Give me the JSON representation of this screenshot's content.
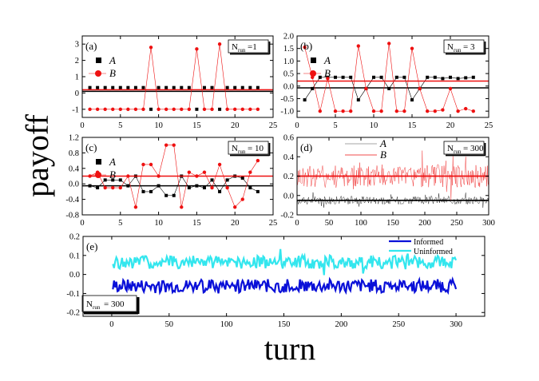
{
  "figure": {
    "ylabel": "payoff",
    "xlabel": "turn"
  },
  "colors": {
    "A": "#000000",
    "B": "#ee1111",
    "informed": "#0a10d8",
    "uninformed": "#33e6ee"
  },
  "chart_data": [
    {
      "panel": "(a)",
      "type": "scatter",
      "nrun_label": "N",
      "nrun_sub": "run",
      "nrun_value": "=1",
      "xlim": [
        0,
        25
      ],
      "ylim": [
        -1.5,
        3.5
      ],
      "xticks": [
        0,
        5,
        10,
        15,
        20,
        25
      ],
      "yticks": [
        -1,
        0,
        1,
        2,
        3
      ],
      "legend": [
        "A",
        "B"
      ],
      "series": [
        {
          "name": "A",
          "mean": 0.1,
          "connected": false,
          "x": [
            1,
            2,
            3,
            4,
            5,
            6,
            7,
            8,
            9,
            10,
            11,
            12,
            13,
            14,
            15,
            16,
            17,
            18,
            19,
            20,
            21,
            22,
            23
          ],
          "y": [
            0.33,
            0.33,
            0.33,
            0.33,
            0.33,
            0.33,
            0.33,
            0.33,
            -1,
            0.33,
            0.33,
            0.33,
            0.33,
            0.33,
            -1,
            0.33,
            0.33,
            -1,
            0.33,
            0.33,
            0.33,
            0.33,
            0.33
          ]
        },
        {
          "name": "B",
          "mean": 0.2,
          "connected": true,
          "x": [
            1,
            2,
            3,
            4,
            5,
            6,
            7,
            8,
            9,
            10,
            11,
            12,
            13,
            14,
            15,
            16,
            17,
            18,
            19,
            20,
            21,
            22,
            23
          ],
          "y": [
            -1,
            -1,
            -1,
            -1,
            -1,
            -1,
            -1,
            -1,
            2.8,
            -1,
            -1,
            -1,
            -1,
            -1,
            2.7,
            -1,
            -1,
            3.0,
            -1,
            -1,
            -1,
            -1,
            -1
          ]
        }
      ]
    },
    {
      "panel": "(b)",
      "type": "scatter",
      "nrun_label": "N",
      "nrun_sub": "run",
      "nrun_value": "= 3",
      "xlim": [
        0,
        25
      ],
      "ylim": [
        -1.25,
        2.0
      ],
      "xticks": [
        0,
        5,
        10,
        15,
        20,
        25
      ],
      "yticks": [
        -1.0,
        -0.5,
        0.0,
        0.5,
        1.0,
        1.5,
        2.0
      ],
      "legend": [
        "A",
        "B"
      ],
      "series": [
        {
          "name": "A",
          "mean": -0.07,
          "connected": true,
          "x": [
            1,
            2,
            3,
            4,
            5,
            6,
            7,
            8,
            9,
            10,
            11,
            12,
            13,
            14,
            15,
            16,
            17,
            18,
            19,
            20,
            21,
            22,
            23
          ],
          "y": [
            -0.55,
            -0.1,
            0.35,
            0.35,
            0.35,
            0.35,
            0.35,
            -0.55,
            -0.1,
            0.35,
            0.35,
            -0.1,
            0.35,
            0.35,
            -0.55,
            -0.1,
            0.35,
            0.35,
            0.3,
            0.35,
            0.3,
            0.33,
            0.35
          ]
        },
        {
          "name": "B",
          "mean": 0.2,
          "connected": true,
          "x": [
            1,
            2,
            3,
            4,
            5,
            6,
            7,
            8,
            9,
            10,
            11,
            12,
            13,
            14,
            15,
            16,
            17,
            18,
            19,
            20,
            21,
            22,
            23
          ],
          "y": [
            1.55,
            0.35,
            -1.0,
            0.3,
            -1.0,
            -1.0,
            -1.0,
            1.6,
            -0.1,
            -1.0,
            -1.0,
            1.7,
            -1.0,
            -1.0,
            1.5,
            -0.1,
            -1.0,
            -1.0,
            -0.95,
            -0.1,
            -1.0,
            -0.9,
            -1.0
          ]
        }
      ]
    },
    {
      "panel": "(c)",
      "type": "scatter",
      "nrun_label": "N",
      "nrun_sub": "run",
      "nrun_value": "= 10",
      "xlim": [
        0,
        25
      ],
      "ylim": [
        -0.8,
        1.2
      ],
      "xticks": [
        0,
        5,
        10,
        15,
        20,
        25
      ],
      "yticks": [
        -0.8,
        -0.4,
        0.0,
        0.4,
        0.8,
        1.2
      ],
      "legend": [
        "A",
        "B"
      ],
      "series": [
        {
          "name": "A",
          "mean": -0.05,
          "connected": true,
          "x": [
            1,
            2,
            3,
            4,
            5,
            6,
            7,
            8,
            9,
            10,
            11,
            12,
            13,
            14,
            15,
            16,
            17,
            18,
            19,
            20,
            21,
            22,
            23
          ],
          "y": [
            -0.05,
            -0.1,
            0.1,
            0.1,
            0.1,
            -0.05,
            0.2,
            -0.2,
            -0.2,
            -0.05,
            -0.3,
            -0.3,
            0.2,
            -0.1,
            -0.05,
            -0.1,
            0.1,
            -0.2,
            0.1,
            0.2,
            0.15,
            -0.1,
            -0.2
          ]
        },
        {
          "name": "B",
          "mean": 0.2,
          "connected": true,
          "x": [
            1,
            2,
            3,
            4,
            5,
            6,
            7,
            8,
            9,
            10,
            11,
            12,
            13,
            14,
            15,
            16,
            17,
            18,
            19,
            20,
            21,
            22,
            23
          ],
          "y": [
            0.2,
            0.3,
            -0.1,
            -0.1,
            -0.1,
            0.2,
            -0.6,
            0.5,
            0.5,
            0.2,
            1.0,
            1.0,
            -0.6,
            0.3,
            0.2,
            0.3,
            -0.1,
            0.5,
            -0.1,
            -0.6,
            -0.4,
            0.3,
            0.6
          ]
        }
      ]
    },
    {
      "panel": "(d)",
      "type": "line",
      "nrun_label": "N",
      "nrun_sub": "run",
      "nrun_value": "= 300",
      "xlim": [
        0,
        300
      ],
      "ylim": [
        -0.2,
        0.6
      ],
      "xticks": [
        0,
        50,
        100,
        150,
        200,
        250,
        300
      ],
      "yticks": [
        -0.2,
        0.0,
        0.2,
        0.4,
        0.6
      ],
      "legend": [
        "A",
        "B"
      ],
      "series": [
        {
          "name": "A",
          "mean": -0.05,
          "x_range": [
            1,
            300
          ],
          "base": -0.05,
          "amplitude": 0.04,
          "spike": 0.12
        },
        {
          "name": "B",
          "mean": 0.2,
          "x_range": [
            1,
            300
          ],
          "base": 0.2,
          "amplitude": 0.12,
          "spike": 0.35
        }
      ]
    },
    {
      "panel": "(e)",
      "type": "line",
      "nrun_label": "N",
      "nrun_sub": "run",
      "nrun_value": "= 300",
      "xlim": [
        -25,
        325
      ],
      "ylim": [
        -0.22,
        0.2
      ],
      "xticks": [
        0,
        50,
        100,
        150,
        200,
        250,
        300
      ],
      "yticks": [
        -0.2,
        -0.1,
        0.0,
        0.1,
        0.2
      ],
      "legend": [
        "Informed",
        "Uninformed"
      ],
      "series": [
        {
          "name": "Informed",
          "x_range": [
            1,
            300
          ],
          "base": -0.06,
          "amplitude": 0.035
        },
        {
          "name": "Uninformed",
          "x_range": [
            1,
            300
          ],
          "base": 0.065,
          "amplitude": 0.035
        }
      ]
    }
  ]
}
